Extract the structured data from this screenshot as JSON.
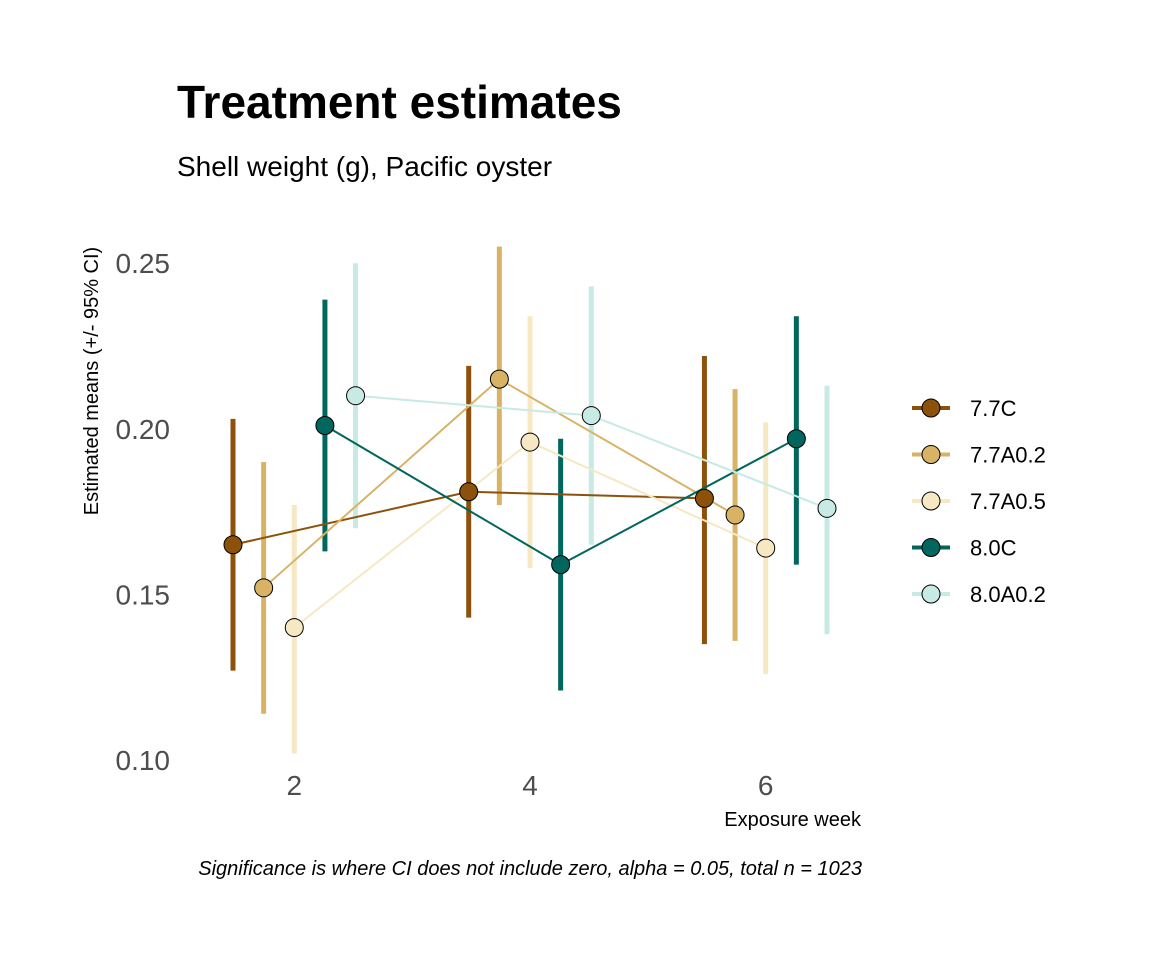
{
  "chart_data": {
    "type": "line",
    "title": "Treatment estimates",
    "subtitle": "Shell weight (g), Pacific oyster",
    "xlabel": "Exposure week",
    "ylabel": "Estimated means (+/- 95% CI)",
    "caption": "Significance is where CI does not include zero, alpha = 0.05, total n = 1023",
    "x": [
      2,
      4,
      6
    ],
    "x_tick_labels": [
      "2",
      "4",
      "6"
    ],
    "y_ticks": [
      0.1,
      0.15,
      0.2,
      0.25
    ],
    "y_tick_labels": [
      "0.10",
      "0.15",
      "0.20",
      "0.25"
    ],
    "ylim": [
      0.097,
      0.257
    ],
    "xlim": [
      1.2,
      6.8
    ],
    "grid": false,
    "legend_position": "right",
    "series": [
      {
        "name": "7.7C",
        "color": "#8c510a",
        "values": [
          0.165,
          0.181,
          0.179
        ],
        "ci_low": [
          0.127,
          0.143,
          0.135
        ],
        "ci_high": [
          0.203,
          0.219,
          0.222
        ]
      },
      {
        "name": "7.7A0.2",
        "color": "#d8b365",
        "values": [
          0.152,
          0.215,
          0.174
        ],
        "ci_low": [
          0.114,
          0.177,
          0.136
        ],
        "ci_high": [
          0.19,
          0.255,
          0.212
        ]
      },
      {
        "name": "7.7A0.5",
        "color": "#f6e8c3",
        "values": [
          0.14,
          0.196,
          0.164
        ],
        "ci_low": [
          0.102,
          0.158,
          0.126
        ],
        "ci_high": [
          0.177,
          0.234,
          0.202
        ]
      },
      {
        "name": "8.0C",
        "color": "#01665e",
        "values": [
          0.201,
          0.159,
          0.197
        ],
        "ci_low": [
          0.163,
          0.121,
          0.159
        ],
        "ci_high": [
          0.239,
          0.197,
          0.234
        ]
      },
      {
        "name": "8.0A0.2",
        "color": "#c7eae5",
        "values": [
          0.21,
          0.204,
          0.176
        ],
        "ci_low": [
          0.17,
          0.165,
          0.138
        ],
        "ci_high": [
          0.25,
          0.243,
          0.213
        ]
      }
    ]
  }
}
